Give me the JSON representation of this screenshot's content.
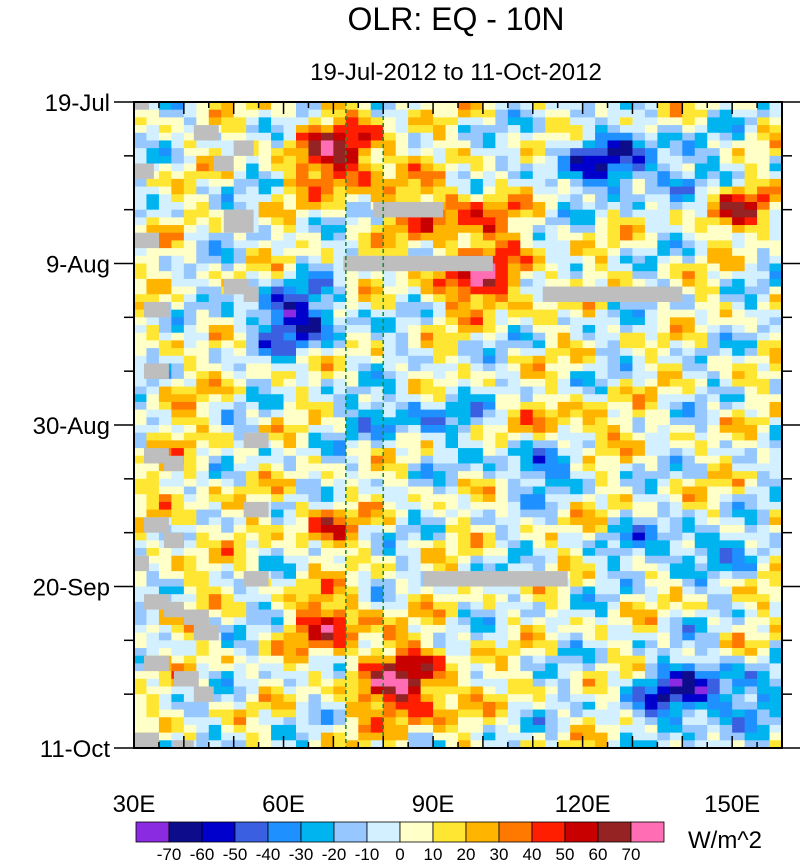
{
  "chart_data": {
    "type": "heatmap",
    "title": "OLR: EQ - 10N",
    "subtitle": "19-Jul-2012 to 11-Oct-2012",
    "x_axis": {
      "range": [
        30,
        160
      ],
      "ticks": [
        {
          "value": 30,
          "label": "30E"
        },
        {
          "value": 60,
          "label": "60E"
        },
        {
          "value": 90,
          "label": "90E"
        },
        {
          "value": 120,
          "label": "120E"
        },
        {
          "value": 150,
          "label": "150E"
        }
      ],
      "minor_step": 5
    },
    "y_axis": {
      "range_days": [
        0,
        84
      ],
      "direction": "top-to-bottom",
      "ticks": [
        {
          "value": 0,
          "label": "19-Jul"
        },
        {
          "value": 21,
          "label": "9-Aug"
        },
        {
          "value": 42,
          "label": "30-Aug"
        },
        {
          "value": 63,
          "label": "20-Sep"
        },
        {
          "value": 84,
          "label": "11-Oct"
        }
      ],
      "minor_step": 7
    },
    "reference_lines": [
      {
        "lon": 72.5,
        "color": "#1f8c3a",
        "style": "dashed"
      },
      {
        "lon": 80,
        "color": "#1f8c3a",
        "style": "dashed"
      }
    ],
    "colorbar": {
      "units": "W/m^2",
      "levels": [
        -70,
        -60,
        -50,
        -40,
        -30,
        -20,
        -10,
        0,
        10,
        20,
        30,
        40,
        50,
        60,
        70
      ],
      "colors": [
        "#8a2be2",
        "#0d0d8c",
        "#0000cd",
        "#3a5fe0",
        "#1e90ff",
        "#00b4f0",
        "#96c8ff",
        "#d2f0ff",
        "#ffffc8",
        "#ffe632",
        "#ffb400",
        "#ff7800",
        "#ff1e00",
        "#c80000",
        "#962323",
        "#ff6eb4"
      ]
    },
    "missing_color": "#bebebe",
    "field_description": "OLR anomaly (W/m^2), longitude vs time"
  }
}
